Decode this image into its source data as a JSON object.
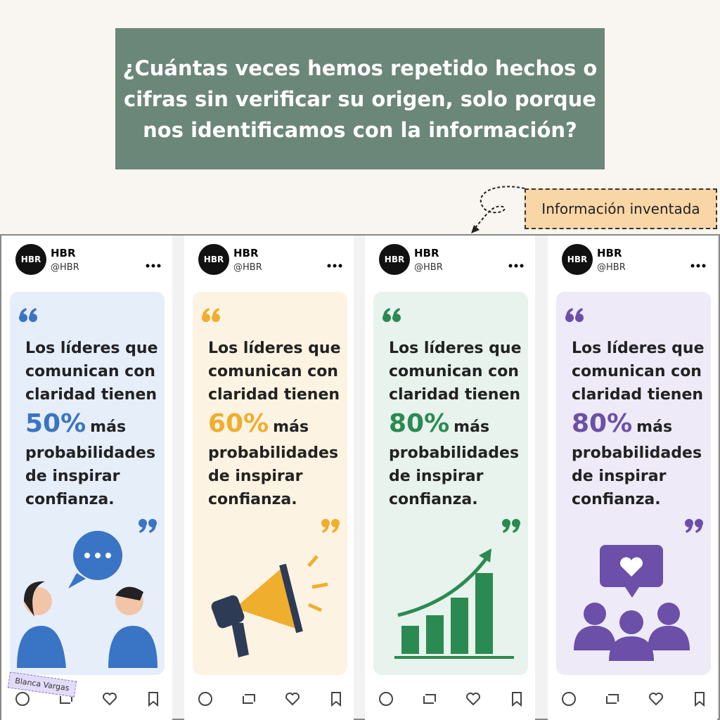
{
  "header": {
    "question_lines": [
      "¿Cuántas veces hemos repetido hechos o",
      "cifras sin verificar su origen, solo porque",
      "nos identificamos con la información?"
    ]
  },
  "annotation": {
    "label": "Información inventada"
  },
  "cards": [
    {
      "avatar": "HBR",
      "name": "HBR",
      "handle": "@HBR",
      "lines_before": [
        "Los líderes que",
        "comunican con",
        "claridad tienen"
      ],
      "highlight": "50%",
      "highlight_suffix": "más",
      "lines_after": [
        "probabilidades",
        "de inspirar",
        "confianza."
      ],
      "color": "#3a74c4",
      "panel": "#e6eefa"
    },
    {
      "avatar": "HBR",
      "name": "HBR",
      "handle": "@HBR",
      "lines_before": [
        "Los líderes que",
        "comunican con",
        "claridad tienen"
      ],
      "highlight": "60%",
      "highlight_suffix": "más",
      "lines_after": [
        "probabilidades",
        "de inspirar",
        "confianza."
      ],
      "color": "#efae2e",
      "panel": "#fdf3e2"
    },
    {
      "avatar": "HBR",
      "name": "HBR",
      "handle": "@HBR",
      "lines_before": [
        "Los líderes que",
        "comunican con",
        "claridad tienen"
      ],
      "highlight": "80%",
      "highlight_suffix": "más",
      "lines_after": [
        "probabilidades",
        "de inspirar",
        "confianza."
      ],
      "color": "#2b8a52",
      "panel": "#e7f3ec"
    },
    {
      "avatar": "HBR",
      "name": "HBR",
      "handle": "@HBR",
      "lines_before": [
        "Los líderes que",
        "comunican con",
        "claridad tienen"
      ],
      "highlight": "80%",
      "highlight_suffix": "más",
      "lines_after": [
        "probabilidades",
        "de inspirar",
        "confianza."
      ],
      "color": "#6b4fa8",
      "panel": "#eeeaf7"
    }
  ],
  "watermark": "Blanca Vargas"
}
